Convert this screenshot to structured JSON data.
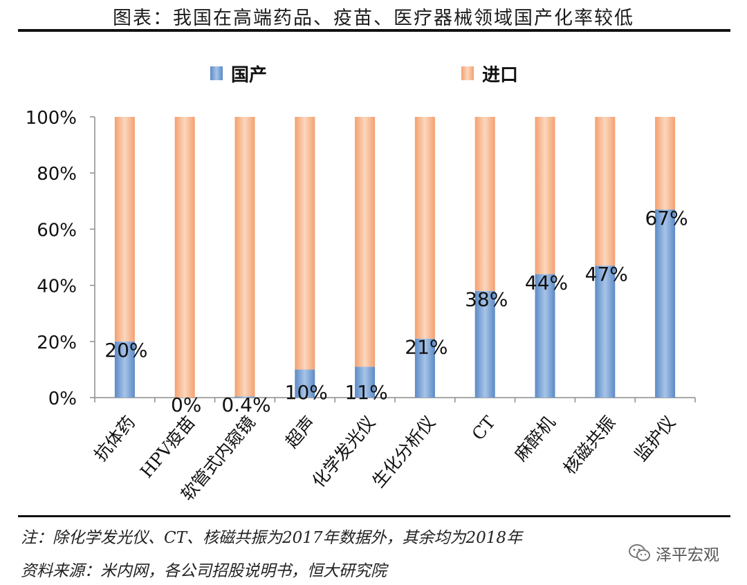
{
  "title": "图表：我国在高端药品、疫苗、医疗器械领域国产化率较低",
  "note": "注：除化学发光仪、CT、核磁共振为2017年数据外，其余均为2018年",
  "source": "资料来源：米内网，各公司招股说明书，恒大研究院",
  "watermark": "泽平宏观",
  "watermark_icon": "wechat-icon",
  "colors": {
    "domestic": "#5b8ac6",
    "domestic_light": "#a7c4e8",
    "import": "#f4a070",
    "import_light": "#fbd7bd",
    "axis": "#8c8c8c"
  },
  "chart_data": {
    "type": "bar",
    "stacked": true,
    "percent": true,
    "title": "图表：我国在高端药品、疫苗、医疗器械领域国产化率较低",
    "categories": [
      "抗体药",
      "HPV疫苗",
      "软管式内窥镜",
      "超声",
      "化学发光仪",
      "生化分析仪",
      "CT",
      "麻醉机",
      "核磁共振",
      "监护仪"
    ],
    "series": [
      {
        "name": "国产",
        "values": [
          20,
          0,
          0.4,
          10,
          11,
          21,
          38,
          44,
          47,
          67
        ]
      },
      {
        "name": "进口",
        "values": [
          80,
          100,
          99.6,
          90,
          89,
          79,
          62,
          56,
          53,
          33
        ]
      }
    ],
    "data_labels": [
      "20%",
      "0%",
      "0.4%",
      "10%",
      "11%",
      "21%",
      "38%",
      "44%",
      "47%",
      "67%"
    ],
    "y_ticks": [
      "0%",
      "20%",
      "40%",
      "60%",
      "80%",
      "100%"
    ],
    "ylim": [
      0,
      100
    ],
    "xlabel": "",
    "ylabel": "",
    "legend": [
      "国产",
      "进口"
    ],
    "legend_position": "top"
  }
}
